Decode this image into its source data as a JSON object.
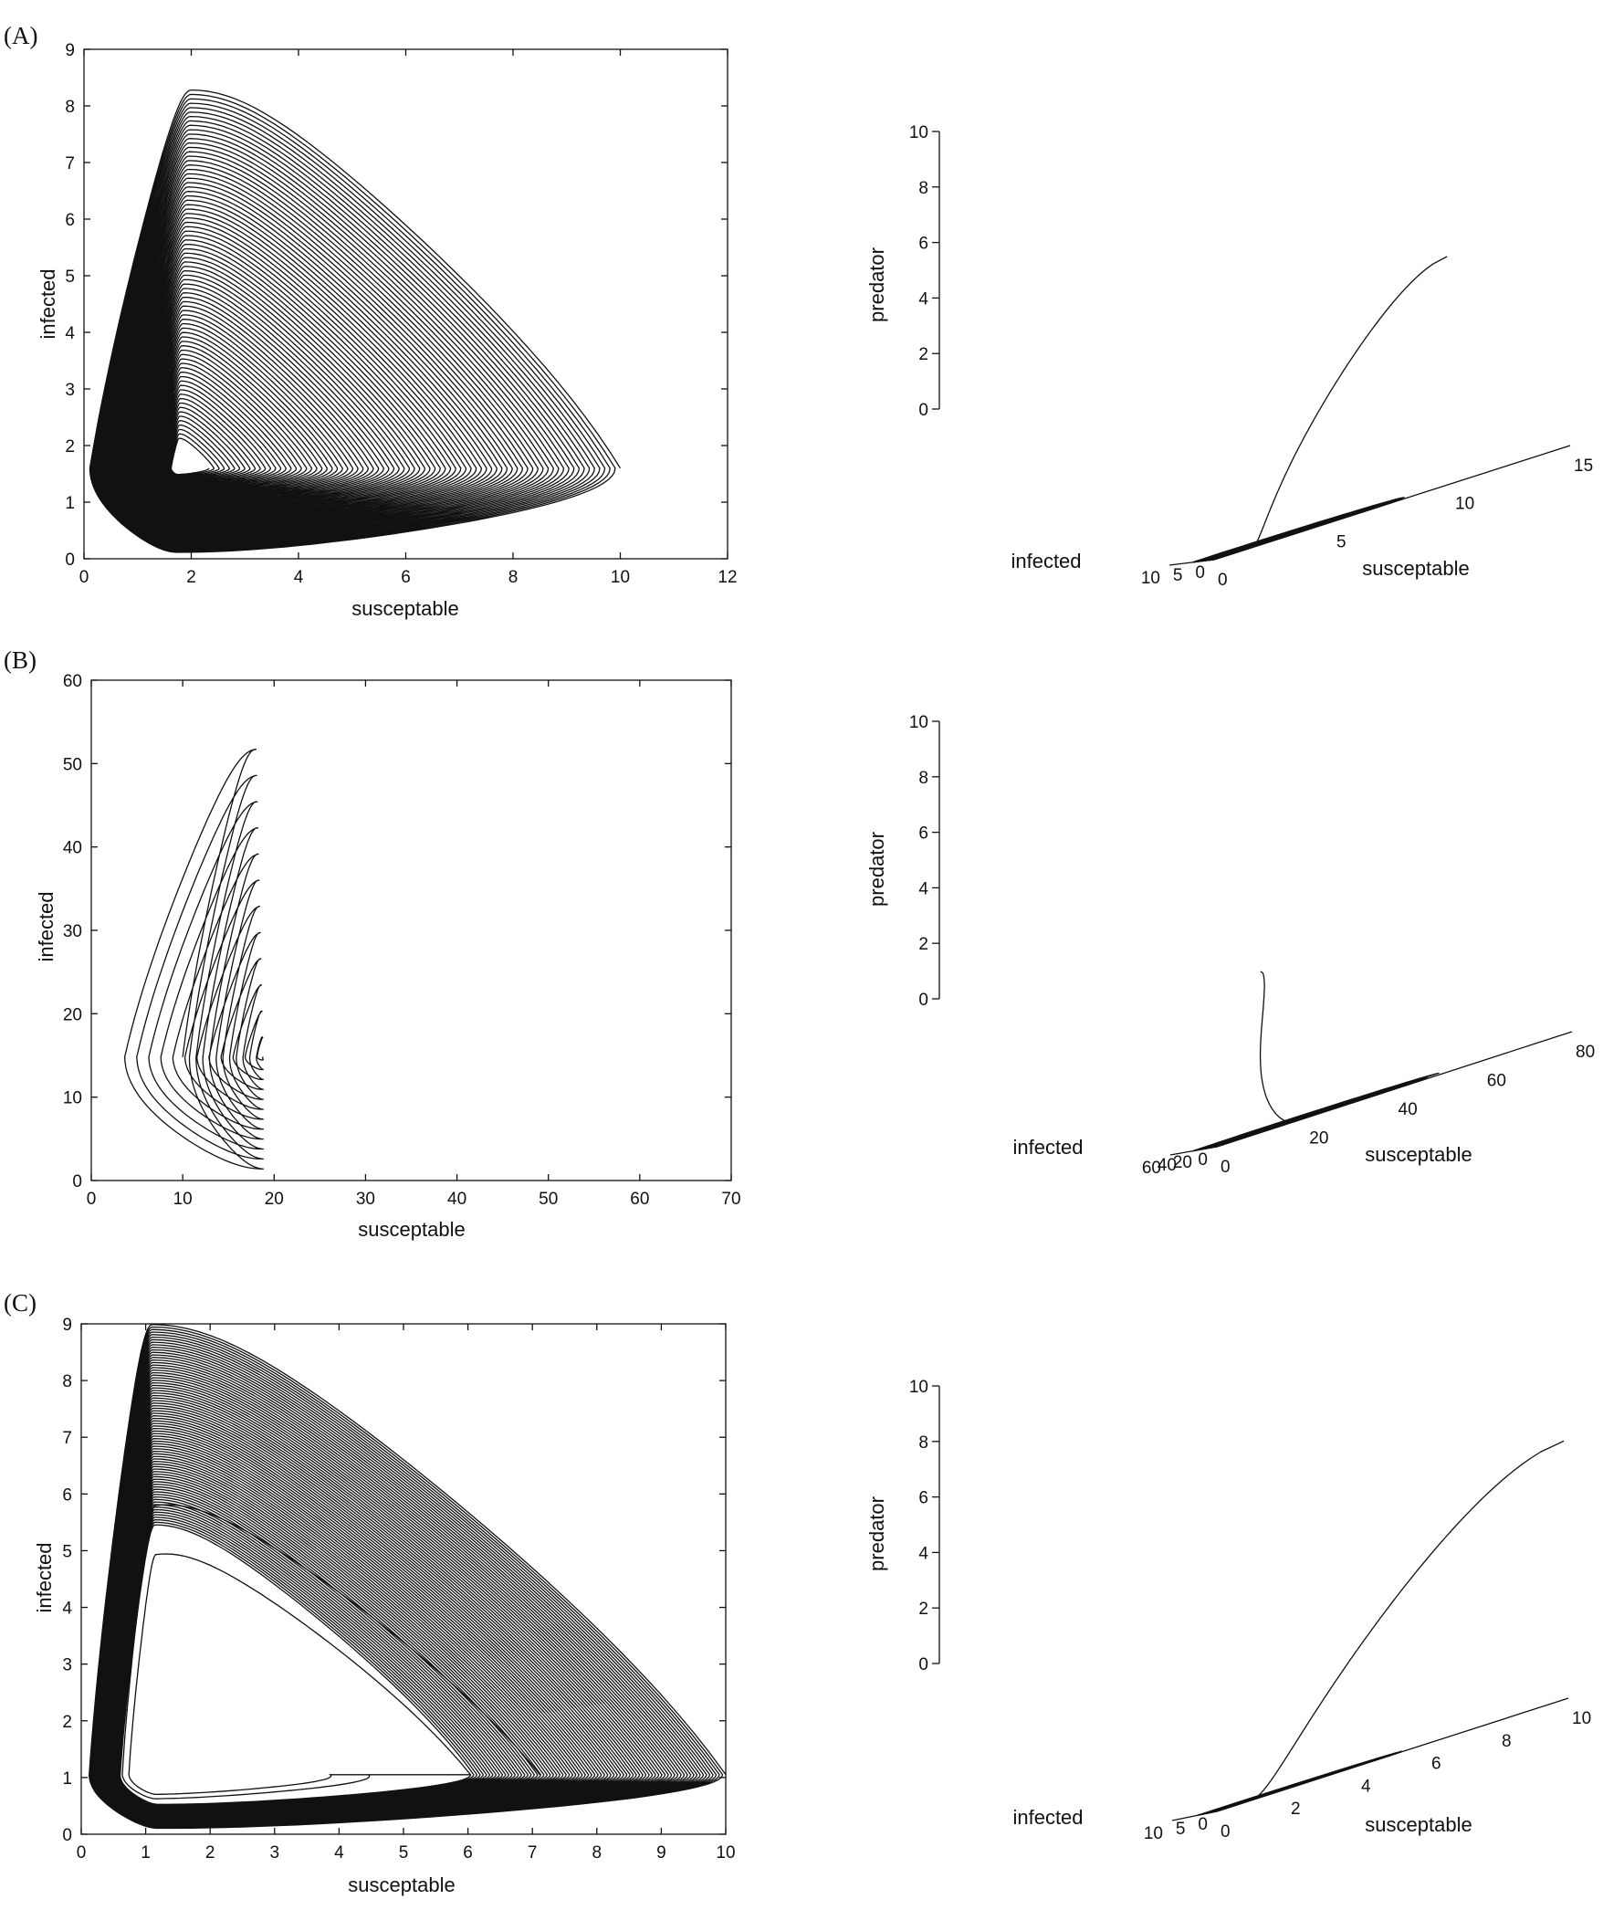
{
  "chart_data": [
    {
      "panel": "(A)",
      "plots": [
        {
          "type": "line",
          "view": "2d",
          "xlabel": "susceptable",
          "ylabel": "infected",
          "xlim": [
            0,
            12
          ],
          "ylim": [
            0,
            9
          ],
          "xticks": [
            "0",
            "2",
            "4",
            "6",
            "8",
            "10",
            "12"
          ],
          "yticks": [
            "0",
            "1",
            "2",
            "3",
            "4",
            "5",
            "6",
            "7",
            "8",
            "9"
          ],
          "spiral": {
            "start": [
              10,
              1
            ],
            "peak": [
              2,
              8.3
            ],
            "equilibrium": [
              1.75,
              1.6
            ],
            "min_x": 0.1,
            "min_y": 0.1,
            "turns": 80,
            "hole_radius": 0.07,
            "outer_hole": 0,
            "rings": []
          }
        },
        {
          "type": "line",
          "view": "3d",
          "xlabel": "susceptable",
          "ylabel": "infected",
          "zlabel": "predator",
          "xlim": [
            0,
            15
          ],
          "ylim": [
            0,
            10
          ],
          "zlim": [
            0,
            10
          ],
          "xticks": [
            "0",
            "5",
            "10",
            "15"
          ],
          "yticks": [
            "0",
            "5",
            "10"
          ],
          "zticks": [
            "0",
            "2",
            "4",
            "6",
            "8",
            "10"
          ],
          "trajectory": {
            "start": [
              10,
              1,
              8.2
            ],
            "cloud_center": [
              2,
              1.6,
              0
            ],
            "turns": 60
          }
        }
      ]
    },
    {
      "panel": "(B)",
      "plots": [
        {
          "type": "line",
          "view": "2d",
          "xlabel": "susceptable",
          "ylabel": "infected",
          "xlim": [
            0,
            70
          ],
          "ylim": [
            0,
            60
          ],
          "xticks": [
            "0",
            "10",
            "20",
            "30",
            "40",
            "50",
            "60",
            "70"
          ],
          "yticks": [
            "0",
            "10",
            "20",
            "30",
            "40",
            "50",
            "60"
          ],
          "spiral": {
            "start": [
              10,
              1
            ],
            "peak": [
              18,
              52.5
            ],
            "equilibrium": [
              18.8,
              14.8
            ],
            "min_x": 3,
            "min_y": 0.5,
            "turns": 12,
            "hole_radius": 0,
            "outer_hole": 0,
            "rings": []
          }
        },
        {
          "type": "line",
          "view": "3d",
          "xlabel": "susceptable",
          "ylabel": "infected",
          "zlabel": "predator",
          "xlim": [
            0,
            80
          ],
          "ylim": [
            0,
            60
          ],
          "zlim": [
            0,
            10
          ],
          "xticks": [
            "0",
            "20",
            "40",
            "60",
            "80"
          ],
          "yticks": [
            "0",
            "20",
            "40",
            "60"
          ],
          "zticks": [
            "0",
            "2",
            "4",
            "6",
            "8",
            "10"
          ],
          "trajectory": {
            "start": [
              10,
              1,
              5.8
            ],
            "cloud_center": [
              19,
              15,
              0
            ],
            "turns": 12
          }
        }
      ]
    },
    {
      "panel": "(C)",
      "plots": [
        {
          "type": "line",
          "view": "2d",
          "xlabel": "susceptable",
          "ylabel": "infected",
          "xlim": [
            0,
            10
          ],
          "ylim": [
            0,
            9
          ],
          "xticks": [
            "0",
            "1",
            "2",
            "3",
            "4",
            "5",
            "6",
            "7",
            "8",
            "9",
            "10"
          ],
          "yticks": [
            "0",
            "1",
            "2",
            "3",
            "4",
            "5",
            "6",
            "7",
            "8",
            "9"
          ],
          "spiral": {
            "start": [
              10,
              1
            ],
            "peak": [
              1.1,
              9
            ],
            "equilibrium": [
              1.2,
              1.05
            ],
            "min_x": 0.12,
            "min_y": 0.1,
            "turns": 80,
            "hole_radius": 0,
            "outer_hole": 0.55,
            "rings": [
              0.82
            ]
          }
        },
        {
          "type": "line",
          "view": "3d",
          "xlabel": "susceptable",
          "ylabel": "infected",
          "zlabel": "predator",
          "xlim": [
            0,
            10
          ],
          "ylim": [
            0,
            10
          ],
          "zlim": [
            0,
            10
          ],
          "xticks": [
            "0",
            "2",
            "4",
            "6",
            "8",
            "10"
          ],
          "yticks": [
            "0",
            "5",
            "10"
          ],
          "zticks": [
            "0",
            "2",
            "4",
            "6",
            "8",
            "10"
          ],
          "trajectory": {
            "start": [
              10,
              1,
              9.3
            ],
            "cloud_center": [
              1.2,
              1.1,
              0
            ],
            "turns": 60
          }
        }
      ]
    }
  ]
}
